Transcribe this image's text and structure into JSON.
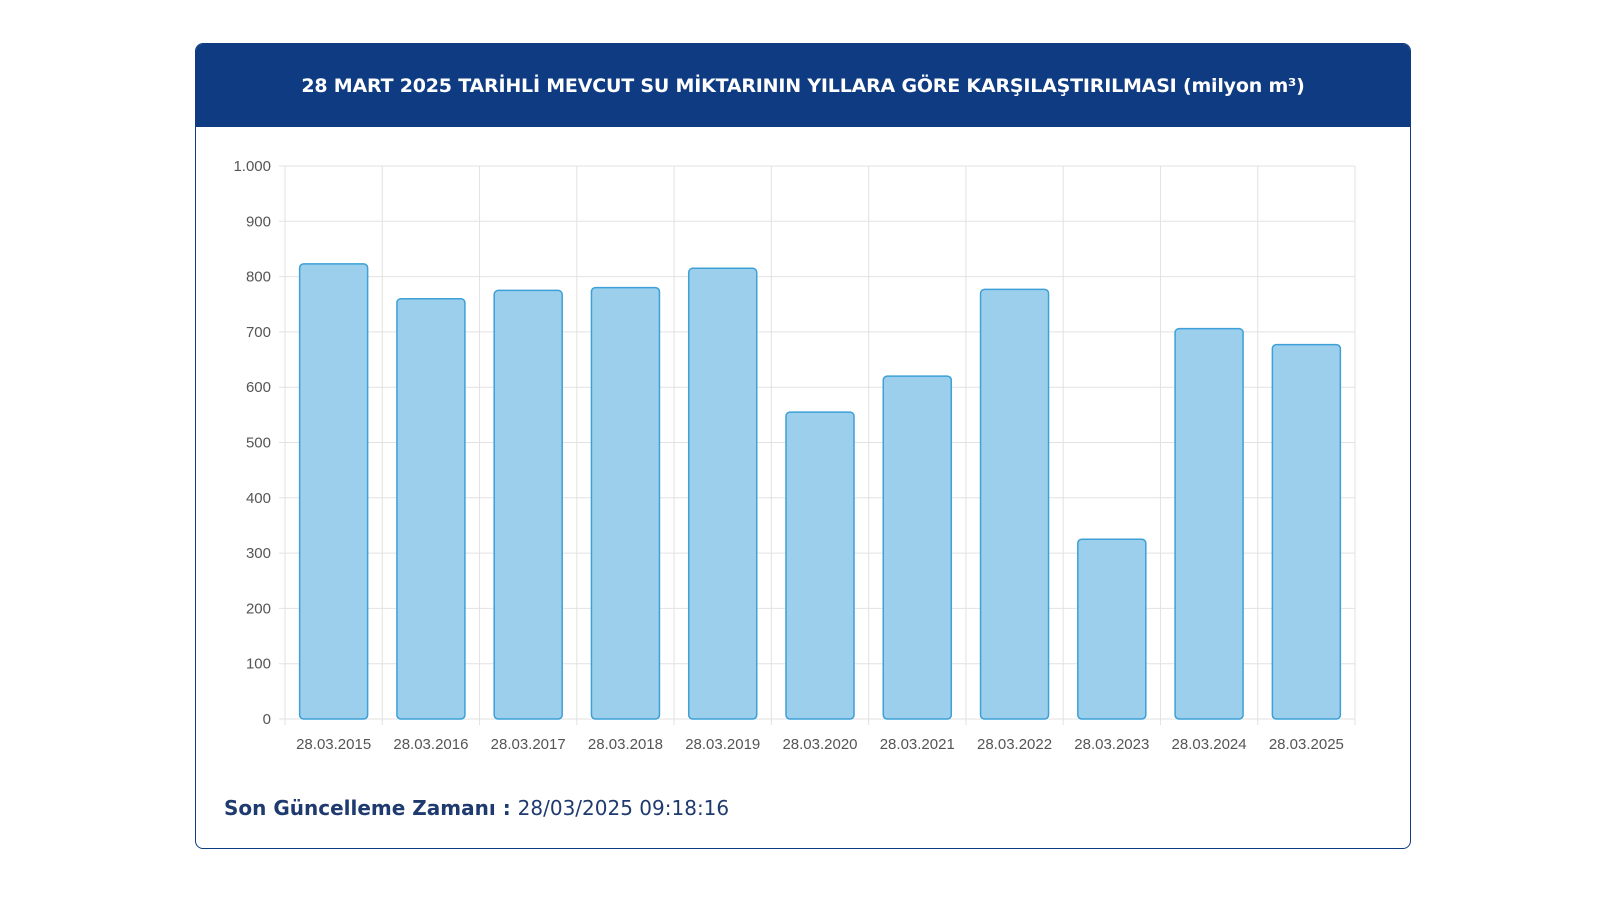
{
  "header": {
    "title": "28 MART 2025 TARİHLİ MEVCUT SU MİKTARININ YILLARA GÖRE KARŞILAŞTIRILMASI (milyon m³)"
  },
  "footer": {
    "label": "Son Güncelleme Zamanı",
    "separator": " : ",
    "value": "28/03/2025 09:18:16"
  },
  "colors": {
    "header_bg": "#0f3b82",
    "bar_fill": "#9ccfec",
    "bar_stroke": "#3da0d6",
    "grid": "#e2e2e2"
  },
  "chart_data": {
    "type": "bar",
    "title": "28 MART 2025 TARİHLİ MEVCUT SU MİKTARININ YILLARA GÖRE KARŞILAŞTIRILMASI (milyon m³)",
    "categories": [
      "28.03.2015",
      "28.03.2016",
      "28.03.2017",
      "28.03.2018",
      "28.03.2019",
      "28.03.2020",
      "28.03.2021",
      "28.03.2022",
      "28.03.2023",
      "28.03.2024",
      "28.03.2025"
    ],
    "values": [
      823,
      760,
      775,
      780,
      815,
      555,
      620,
      777,
      325,
      706,
      677
    ],
    "ylim": [
      0,
      1000
    ],
    "yticks": [
      0,
      100,
      200,
      300,
      400,
      500,
      600,
      700,
      800,
      900,
      1000
    ],
    "ytick_labels": [
      "0",
      "100",
      "200",
      "300",
      "400",
      "500",
      "600",
      "700",
      "800",
      "900",
      "1.000"
    ],
    "xlabel": "",
    "ylabel": "",
    "grid": true,
    "legend": "none"
  }
}
